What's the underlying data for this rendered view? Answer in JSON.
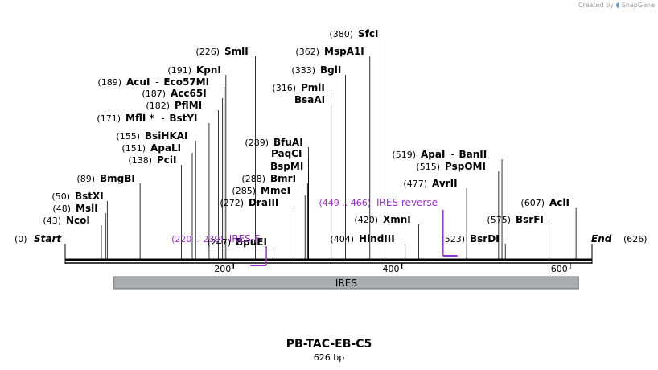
{
  "credit": {
    "prefix": "Created by",
    "brand": "SnapGene"
  },
  "sequence": {
    "name": "PB-TAC-EB-C5",
    "length_label": "626 bp",
    "length": 626
  },
  "ends": {
    "start_pos": "(0)",
    "start_label": "Start",
    "end_label": "End",
    "end_pos": "(626)"
  },
  "ticks": [
    {
      "pos": 200,
      "label": "200"
    },
    {
      "pos": 400,
      "label": "400"
    },
    {
      "pos": 600,
      "label": "600"
    }
  ],
  "feature": {
    "name": "IRES",
    "start": 58,
    "end": 610,
    "color": "#a9acaf"
  },
  "sites": [
    {
      "name": "NcoI",
      "pos": 43,
      "pos_label": "(43)"
    },
    {
      "name": "MslI",
      "pos": 48,
      "pos_label": "(48)"
    },
    {
      "name": "BstXI",
      "pos": 50,
      "pos_label": "(50)"
    },
    {
      "name": "BmgBI",
      "pos": 89,
      "pos_label": "(89)"
    },
    {
      "name": "PciI",
      "pos": 138,
      "pos_label": "(138)"
    },
    {
      "name": "ApaLI",
      "pos": 151,
      "pos_label": "(151)"
    },
    {
      "name": "BsiHKAI",
      "pos": 155,
      "pos_label": "(155)"
    },
    {
      "name": "MflI",
      "pos": 171,
      "pos_label": "(171)",
      "star": true,
      "extra": "BstYI"
    },
    {
      "name": "PflMI",
      "pos": 182,
      "pos_label": "(182)"
    },
    {
      "name": "Acc65I",
      "pos": 187,
      "pos_label": "(187)"
    },
    {
      "name": "AcuI",
      "pos": 189,
      "pos_label": "(189)",
      "extra": "Eco57MI"
    },
    {
      "name": "KpnI",
      "pos": 191,
      "pos_label": "(191)"
    },
    {
      "name": "SmlI",
      "pos": 226,
      "pos_label": "(226)"
    },
    {
      "name": "BpuEI",
      "pos": 247,
      "pos_label": "(247)"
    },
    {
      "name": "DraIII",
      "pos": 272,
      "pos_label": "(272)"
    },
    {
      "name": "MmeI",
      "pos": 285,
      "pos_label": "(285)"
    },
    {
      "name": "BmrI",
      "pos": 288,
      "pos_label": "(288)"
    },
    {
      "name": "BspMI",
      "pos": 289,
      "pos_label": ""
    },
    {
      "name": "PaqCI",
      "pos": 289,
      "pos_label": ""
    },
    {
      "name": "BfuAI",
      "pos": 289,
      "pos_label": "(289)"
    },
    {
      "name": "BsaAI",
      "pos": 316,
      "pos_label": ""
    },
    {
      "name": "PmlI",
      "pos": 316,
      "pos_label": "(316)"
    },
    {
      "name": "BglI",
      "pos": 333,
      "pos_label": "(333)"
    },
    {
      "name": "MspA1I",
      "pos": 362,
      "pos_label": "(362)"
    },
    {
      "name": "SfcI",
      "pos": 380,
      "pos_label": "(380)"
    },
    {
      "name": "HindIII",
      "pos": 404,
      "pos_label": "(404)"
    },
    {
      "name": "XmnI",
      "pos": 420,
      "pos_label": "(420)"
    },
    {
      "name": "AvrII",
      "pos": 477,
      "pos_label": "(477)"
    },
    {
      "name": "PspOMI",
      "pos": 515,
      "pos_label": "(515)"
    },
    {
      "name": "ApaI",
      "pos": 519,
      "pos_label": "(519)",
      "extra": "BanII"
    },
    {
      "name": "BsrDI",
      "pos": 523,
      "pos_label": "(523)"
    },
    {
      "name": "BsrFI",
      "pos": 575,
      "pos_label": "(575)"
    },
    {
      "name": "AclI",
      "pos": 607,
      "pos_label": "(607)"
    }
  ],
  "primers": [
    {
      "name": "IRES-F",
      "range": "(220 .. 239)",
      "start": 220,
      "end": 239,
      "direction": "forward",
      "color": "#9b30d0"
    },
    {
      "name": "IRES reverse",
      "range": "(449 .. 466)",
      "start": 449,
      "end": 466,
      "direction": "reverse",
      "color": "#9b30d0"
    }
  ]
}
